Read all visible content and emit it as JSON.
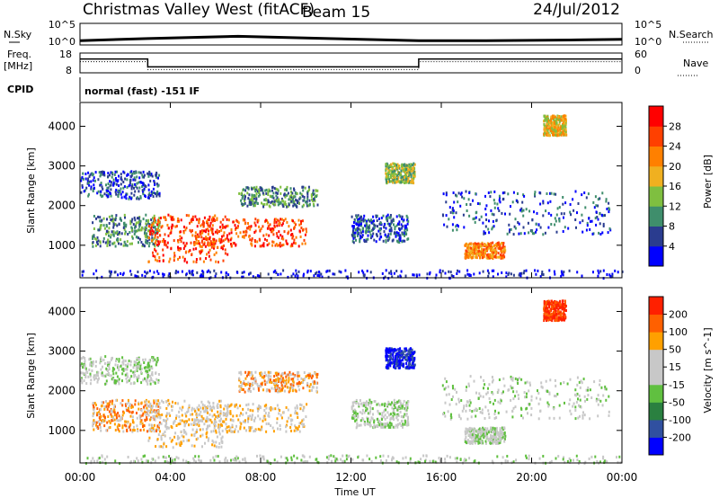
{
  "header": {
    "station": "Christmas Valley West (fitACF)",
    "beam": "Beam 15",
    "date": "24/Jul/2012"
  },
  "params": {
    "nsky_label": "N.Sky",
    "nsearch_label": "N.Search",
    "nsky_ticks": [
      "10^5",
      "10^0"
    ],
    "nsearch_ticks": [
      "10^5",
      "10^0"
    ],
    "freq_label": "Freq.",
    "freq_unit": "[MHz]",
    "freq_ticks": [
      "18",
      "8"
    ],
    "nave_label": "Nave",
    "nave_ticks": [
      "60",
      "0"
    ],
    "cpid_label": "CPID",
    "cpid_text": "normal (fast) -151 IF"
  },
  "x_axis": {
    "label": "Time UT",
    "ticks": [
      "00:00",
      "04:00",
      "08:00",
      "12:00",
      "16:00",
      "20:00",
      "00:00"
    ]
  },
  "colors": {
    "power": [
      "#0000ff",
      "#2a3c8f",
      "#3f8e6c",
      "#7fbf40",
      "#f0b020",
      "#ff8000",
      "#ff4000",
      "#ff0000"
    ],
    "velocity": [
      "#0000ff",
      "#3050a0",
      "#2a8040",
      "#60c040",
      "#c8c8c8",
      "#c8c8c8",
      "#ffa000",
      "#ff6000",
      "#ff2000"
    ]
  },
  "chart_data": [
    {
      "type": "line",
      "name": "sky_noise_panel",
      "ylabel": "N.Sky",
      "y_scale": "log",
      "ylim": [
        1,
        100000
      ],
      "x_range_hours": [
        0,
        24
      ],
      "series": [
        {
          "x": [
            0,
            3,
            7,
            11,
            15,
            18,
            22,
            24
          ],
          "y": [
            10,
            30,
            100,
            30,
            10,
            10,
            15,
            20
          ]
        }
      ]
    },
    {
      "type": "line",
      "name": "frequency_nave_panel",
      "ylabel": "Freq. [MHz]",
      "ylim": [
        8,
        18
      ],
      "y2label": "Nave",
      "y2lim": [
        0,
        60
      ],
      "series": [
        {
          "x": [
            0,
            3,
            3,
            15,
            15,
            24
          ],
          "y": [
            15,
            15,
            11,
            11,
            15,
            15
          ]
        }
      ]
    },
    {
      "type": "heatmap",
      "name": "power_panel",
      "ylabel": "Slant Range [km]",
      "y_ticks": [
        1000,
        2000,
        3000,
        4000
      ],
      "ylim": [
        180,
        4600
      ],
      "x_range_hours": [
        0,
        24
      ],
      "colorbar": {
        "label": "Power [dB]",
        "ticks": [
          "28",
          "24",
          "20",
          "16",
          "12",
          "8",
          "4"
        ]
      }
    },
    {
      "type": "heatmap",
      "name": "velocity_panel",
      "ylabel": "Slant Range [km]",
      "y_ticks": [
        1000,
        2000,
        3000,
        4000
      ],
      "ylim": [
        180,
        4600
      ],
      "x_range_hours": [
        0,
        24
      ],
      "colorbar": {
        "label": "Velocity [m s^-1]",
        "ticks": [
          "200",
          "100",
          "50",
          "15",
          "-15",
          "-50",
          "-100",
          "-200"
        ]
      }
    }
  ]
}
